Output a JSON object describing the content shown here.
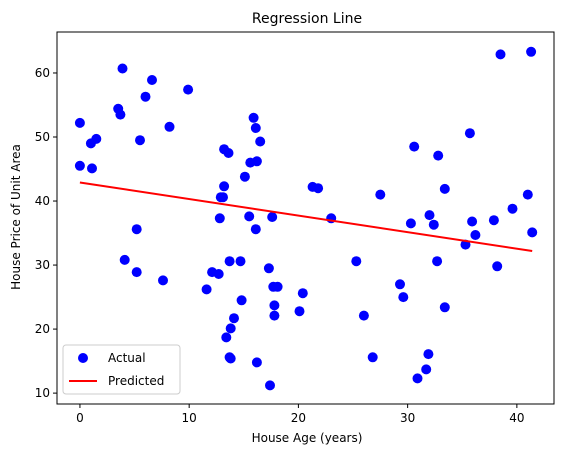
{
  "chart_data": {
    "type": "scatter",
    "title": "Regression Line",
    "xlabel": "House Age (years)",
    "ylabel": "House Price of Unit Area",
    "xlim": [
      -2.1,
      43.4
    ],
    "ylim": [
      8.3,
      66.4
    ],
    "xticks": [
      0,
      10,
      20,
      30,
      40
    ],
    "yticks": [
      10,
      20,
      30,
      40,
      50,
      60
    ],
    "grid": false,
    "legend_position": "lower-left",
    "series": [
      {
        "name": "Actual",
        "kind": "scatter",
        "color": "#0000ff",
        "points": [
          [
            0.0,
            52.2
          ],
          [
            0.0,
            45.5
          ],
          [
            1.0,
            49.0
          ],
          [
            1.1,
            45.1
          ],
          [
            1.5,
            49.7
          ],
          [
            3.5,
            54.4
          ],
          [
            3.7,
            53.5
          ],
          [
            3.9,
            60.7
          ],
          [
            4.1,
            30.8
          ],
          [
            5.2,
            35.6
          ],
          [
            5.2,
            28.9
          ],
          [
            5.5,
            49.5
          ],
          [
            6.0,
            56.3
          ],
          [
            6.6,
            58.9
          ],
          [
            7.6,
            27.6
          ],
          [
            8.2,
            51.6
          ],
          [
            9.9,
            57.4
          ],
          [
            11.6,
            26.2
          ],
          [
            12.1,
            28.9
          ],
          [
            12.7,
            28.6
          ],
          [
            12.8,
            37.3
          ],
          [
            12.9,
            40.6
          ],
          [
            13.1,
            40.6
          ],
          [
            13.2,
            42.3
          ],
          [
            13.2,
            48.1
          ],
          [
            13.4,
            18.7
          ],
          [
            13.6,
            47.5
          ],
          [
            13.7,
            30.6
          ],
          [
            13.7,
            15.6
          ],
          [
            13.8,
            15.4
          ],
          [
            13.8,
            20.1
          ],
          [
            14.1,
            21.7
          ],
          [
            14.7,
            30.6
          ],
          [
            14.8,
            24.5
          ],
          [
            15.1,
            43.8
          ],
          [
            15.5,
            37.6
          ],
          [
            15.6,
            46.0
          ],
          [
            15.9,
            53.0
          ],
          [
            16.1,
            35.6
          ],
          [
            16.1,
            51.4
          ],
          [
            16.2,
            46.2
          ],
          [
            16.2,
            14.8
          ],
          [
            16.5,
            49.3
          ],
          [
            17.3,
            29.5
          ],
          [
            17.4,
            11.2
          ],
          [
            17.6,
            37.5
          ],
          [
            17.7,
            26.6
          ],
          [
            17.8,
            23.7
          ],
          [
            17.8,
            22.1
          ],
          [
            18.1,
            26.6
          ],
          [
            20.1,
            22.8
          ],
          [
            20.4,
            25.6
          ],
          [
            21.3,
            42.2
          ],
          [
            21.8,
            42.0
          ],
          [
            23.0,
            37.3
          ],
          [
            25.3,
            30.6
          ],
          [
            26.0,
            22.1
          ],
          [
            26.8,
            15.6
          ],
          [
            27.5,
            41.0
          ],
          [
            29.3,
            27.0
          ],
          [
            29.6,
            25.0
          ],
          [
            30.3,
            36.5
          ],
          [
            30.6,
            48.5
          ],
          [
            30.9,
            12.3
          ],
          [
            31.7,
            13.7
          ],
          [
            31.9,
            16.1
          ],
          [
            32.0,
            37.8
          ],
          [
            32.4,
            36.3
          ],
          [
            32.7,
            30.6
          ],
          [
            32.8,
            47.1
          ],
          [
            33.4,
            41.9
          ],
          [
            33.4,
            23.4
          ],
          [
            35.3,
            33.2
          ],
          [
            35.7,
            50.6
          ],
          [
            35.9,
            36.8
          ],
          [
            36.2,
            34.7
          ],
          [
            37.9,
            37.0
          ],
          [
            38.2,
            29.8
          ],
          [
            38.5,
            62.9
          ],
          [
            39.6,
            38.8
          ],
          [
            41.0,
            41.0
          ],
          [
            41.3,
            63.3
          ],
          [
            41.4,
            35.1
          ]
        ]
      },
      {
        "name": "Predicted",
        "kind": "line",
        "color": "#ff0000",
        "points": [
          [
            0.0,
            42.9
          ],
          [
            41.4,
            32.2
          ]
        ]
      }
    ]
  }
}
